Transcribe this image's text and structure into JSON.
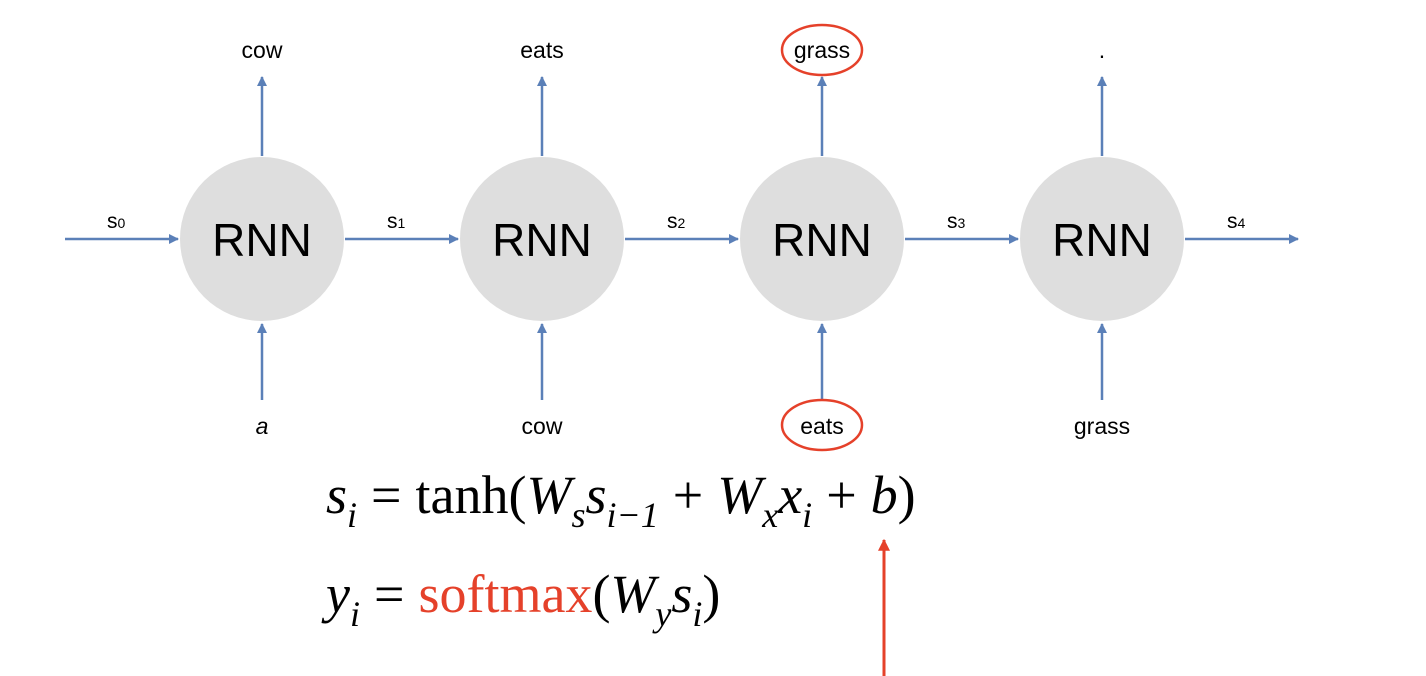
{
  "cells": [
    {
      "label": "RNN",
      "input": "a",
      "output": "cow"
    },
    {
      "label": "RNN",
      "input": "cow",
      "output": "eats"
    },
    {
      "label": "RNN",
      "input": "eats",
      "output": "grass"
    },
    {
      "label": "RNN",
      "input": "grass",
      "output": "."
    }
  ],
  "states": [
    {
      "base": "s",
      "sub": "0"
    },
    {
      "base": "s",
      "sub": "1"
    },
    {
      "base": "s",
      "sub": "2"
    },
    {
      "base": "s",
      "sub": "3"
    },
    {
      "base": "s",
      "sub": "4"
    }
  ],
  "highlighted": {
    "output_index": 2,
    "input_index": 2
  },
  "equations": {
    "eq1": {
      "lhs_var": "s",
      "lhs_sub": "i",
      "equals": "=",
      "func": "tanh(",
      "w1": "W",
      "w1_sub": "s",
      "v1": "s",
      "v1_sub": "i−1",
      "plus1": "+",
      "w2": "W",
      "w2_sub": "x",
      "v2": "x",
      "v2_sub": "i",
      "plus2": "+",
      "bias": "b",
      "close": ")"
    },
    "eq2": {
      "lhs_var": "y",
      "lhs_sub": "i",
      "equals": "=",
      "func": "softmax",
      "open": "(",
      "w": "W",
      "w_sub": "y",
      "v": "s",
      "v_sub": "i",
      "close": ")"
    }
  },
  "colors": {
    "arrow": "#5b80b8",
    "node_fill": "#dedede",
    "highlight": "#e5412a",
    "text": "#000000"
  }
}
